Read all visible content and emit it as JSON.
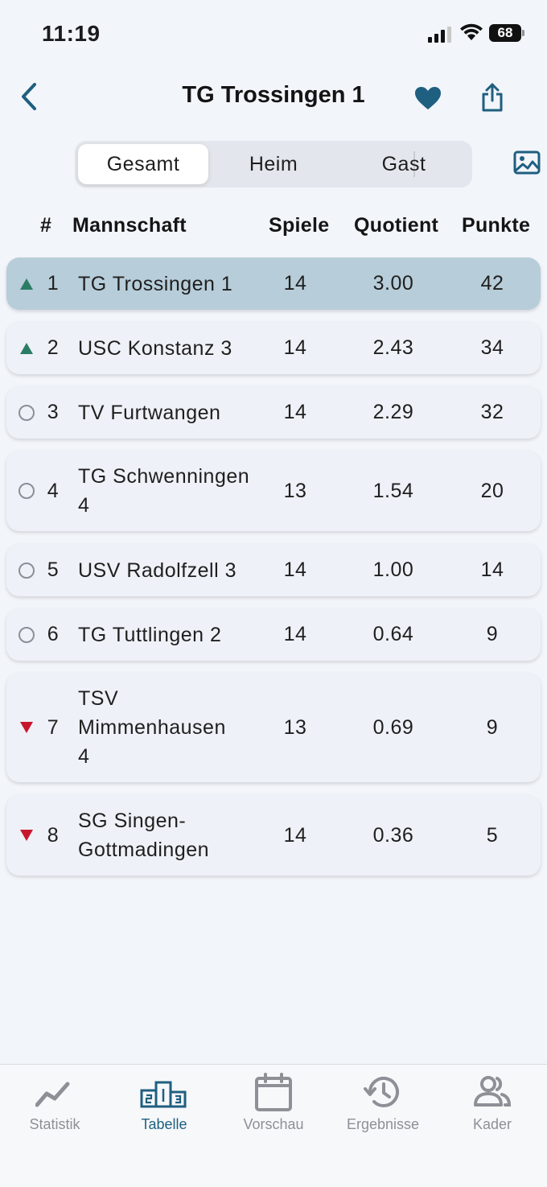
{
  "status_bar": {
    "time": "11:19",
    "battery": "68"
  },
  "header": {
    "title": "TG Trossingen 1"
  },
  "segments": {
    "items": [
      "Gesamt",
      "Heim",
      "Gast"
    ],
    "selected": "Gesamt"
  },
  "table": {
    "headers": {
      "rank": "#",
      "team": "Mannschaft",
      "games": "Spiele",
      "quotient": "Quotient",
      "points": "Punkte"
    },
    "rows": [
      {
        "trend": "up",
        "rank": "1",
        "team": "TG Trossingen 1",
        "games": "14",
        "quotient": "3.00",
        "points": "42",
        "highlight": true
      },
      {
        "trend": "up",
        "rank": "2",
        "team": "USC Konstanz 3",
        "games": "14",
        "quotient": "2.43",
        "points": "34"
      },
      {
        "trend": "same",
        "rank": "3",
        "team": "TV Furtwangen",
        "games": "14",
        "quotient": "2.29",
        "points": "32"
      },
      {
        "trend": "same",
        "rank": "4",
        "team": "TG Schwenningen 4",
        "games": "13",
        "quotient": "1.54",
        "points": "20"
      },
      {
        "trend": "same",
        "rank": "5",
        "team": "USV Radolfzell 3",
        "games": "14",
        "quotient": "1.00",
        "points": "14"
      },
      {
        "trend": "same",
        "rank": "6",
        "team": "TG Tuttlingen 2",
        "games": "14",
        "quotient": "0.64",
        "points": "9"
      },
      {
        "trend": "down",
        "rank": "7",
        "team": "TSV Mimmenhausen 4",
        "games": "13",
        "quotient": "0.69",
        "points": "9"
      },
      {
        "trend": "down",
        "rank": "8",
        "team": "SG Singen-Gottmadingen",
        "games": "14",
        "quotient": "0.36",
        "points": "5"
      }
    ]
  },
  "tab_bar": {
    "items": [
      {
        "label": "Statistik",
        "icon": "chart-line-icon"
      },
      {
        "label": "Tabelle",
        "icon": "podium-icon",
        "active": true
      },
      {
        "label": "Vorschau",
        "icon": "calendar-icon"
      },
      {
        "label": "Ergebnisse",
        "icon": "history-icon"
      },
      {
        "label": "Kader",
        "icon": "people-icon"
      }
    ]
  },
  "colors": {
    "accent": "#1f5f80",
    "highlight_row": "#b7cdd9",
    "trend_up": "#2a7d64",
    "trend_down": "#c7162b"
  }
}
